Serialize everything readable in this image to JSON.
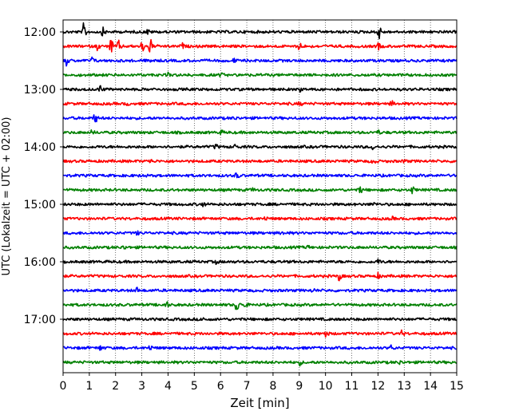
{
  "chart_data": {
    "type": "line",
    "title": "",
    "xlabel": "Zeit  [min]",
    "ylabel": "UTC (Lokalzeit = UTC + 02:00)",
    "xlim": [
      0,
      15
    ],
    "x_ticks": [
      0,
      1,
      2,
      3,
      4,
      5,
      6,
      7,
      8,
      9,
      10,
      11,
      12,
      13,
      14,
      15
    ],
    "x_tick_labels": [
      "0",
      "1",
      "2",
      "3",
      "4",
      "5",
      "6",
      "7",
      "8",
      "9",
      "10",
      "11",
      "12",
      "13",
      "14",
      "15"
    ],
    "y_tick_labels": [
      "12:00",
      "13:00",
      "14:00",
      "15:00",
      "16:00",
      "17:00"
    ],
    "y_ticks_row_index": [
      0,
      4,
      8,
      12,
      16,
      20
    ],
    "grid": "vertical dotted",
    "traces_per_hour": 4,
    "color_cycle": [
      "#000000",
      "#ff0000",
      "#0000ff",
      "#008000"
    ],
    "rows": [
      {
        "start": "12:00",
        "events": [
          {
            "t": 0.78,
            "amp": 10
          },
          {
            "t": 1.5,
            "amp": 5
          },
          {
            "t": 3.2,
            "amp": 3
          },
          {
            "t": 12.0,
            "amp": 12
          }
        ]
      },
      {
        "start": "12:15",
        "events": [
          {
            "t": 1.3,
            "amp": 4
          },
          {
            "t": 1.8,
            "amp": 10
          },
          {
            "t": 2.1,
            "amp": 7
          },
          {
            "t": 3.0,
            "amp": 7
          },
          {
            "t": 3.3,
            "amp": 10
          },
          {
            "t": 4.5,
            "amp": 4
          },
          {
            "t": 9.0,
            "amp": 6
          },
          {
            "t": 12.0,
            "amp": 4
          }
        ]
      },
      {
        "start": "12:30",
        "events": [
          {
            "t": 0.1,
            "amp": 6
          },
          {
            "t": 1.1,
            "amp": 4
          },
          {
            "t": 3.3,
            "amp": 2
          },
          {
            "t": 6.5,
            "amp": 2
          }
        ]
      },
      {
        "start": "12:45",
        "events": [
          {
            "t": 4.0,
            "amp": 2
          },
          {
            "t": 6.0,
            "amp": 2
          }
        ]
      },
      {
        "start": "13:00",
        "events": [
          {
            "t": 1.4,
            "amp": 5
          },
          {
            "t": 9.0,
            "amp": 2
          }
        ]
      },
      {
        "start": "13:15",
        "events": [
          {
            "t": 2.4,
            "amp": 2
          },
          {
            "t": 9.0,
            "amp": 2
          },
          {
            "t": 12.5,
            "amp": 3
          }
        ]
      },
      {
        "start": "13:30",
        "events": [
          {
            "t": 1.2,
            "amp": 7
          },
          {
            "t": 6.5,
            "amp": 2
          }
        ]
      },
      {
        "start": "13:45",
        "events": [
          {
            "t": 1.1,
            "amp": 3
          },
          {
            "t": 6.0,
            "amp": 2
          },
          {
            "t": 12.0,
            "amp": 2
          }
        ]
      },
      {
        "start": "14:00",
        "events": [
          {
            "t": 5.8,
            "amp": 3
          },
          {
            "t": 6.5,
            "amp": 3
          },
          {
            "t": 11.8,
            "amp": 3
          }
        ]
      },
      {
        "start": "14:15",
        "events": [
          {
            "t": 3.3,
            "amp": 2
          },
          {
            "t": 11.8,
            "amp": 4
          },
          {
            "t": 13.0,
            "amp": 2
          }
        ]
      },
      {
        "start": "14:30",
        "events": [
          {
            "t": 3.0,
            "amp": 2
          },
          {
            "t": 6.6,
            "amp": 4
          }
        ]
      },
      {
        "start": "14:45",
        "events": [
          {
            "t": 7.2,
            "amp": 2
          },
          {
            "t": 11.3,
            "amp": 4
          },
          {
            "t": 13.3,
            "amp": 4
          }
        ]
      },
      {
        "start": "15:00",
        "events": [
          {
            "t": 5.3,
            "amp": 3
          },
          {
            "t": 11.8,
            "amp": 2
          }
        ]
      },
      {
        "start": "15:15",
        "events": [
          {
            "t": 7.7,
            "amp": 2
          },
          {
            "t": 12.5,
            "amp": 2
          }
        ]
      },
      {
        "start": "15:30",
        "events": [
          {
            "t": 2.8,
            "amp": 2
          },
          {
            "t": 8.3,
            "amp": 2
          }
        ]
      },
      {
        "start": "15:45",
        "events": [
          {
            "t": 2.3,
            "amp": 2
          },
          {
            "t": 9.3,
            "amp": 2
          }
        ]
      },
      {
        "start": "16:00",
        "events": [
          {
            "t": 5.8,
            "amp": 2
          },
          {
            "t": 12.0,
            "amp": 3
          }
        ]
      },
      {
        "start": "16:15",
        "events": [
          {
            "t": 10.5,
            "amp": 5
          },
          {
            "t": 12.0,
            "amp": 3
          }
        ]
      },
      {
        "start": "16:30",
        "events": [
          {
            "t": 2.8,
            "amp": 3
          },
          {
            "t": 9.5,
            "amp": 2
          }
        ]
      },
      {
        "start": "16:45",
        "events": [
          {
            "t": 3.9,
            "amp": 5
          },
          {
            "t": 6.6,
            "amp": 10
          },
          {
            "t": 6.9,
            "amp": 4
          }
        ]
      },
      {
        "start": "17:00",
        "events": [
          {
            "t": 5.3,
            "amp": 2
          }
        ]
      },
      {
        "start": "17:15",
        "events": [
          {
            "t": 10.0,
            "amp": 5
          },
          {
            "t": 12.9,
            "amp": 3
          }
        ]
      },
      {
        "start": "17:30",
        "events": [
          {
            "t": 1.4,
            "amp": 3
          },
          {
            "t": 3.3,
            "amp": 3
          },
          {
            "t": 12.5,
            "amp": 3
          }
        ]
      },
      {
        "start": "17:45",
        "events": [
          {
            "t": 9.0,
            "amp": 3
          },
          {
            "t": 12.8,
            "amp": 2
          }
        ]
      }
    ]
  }
}
